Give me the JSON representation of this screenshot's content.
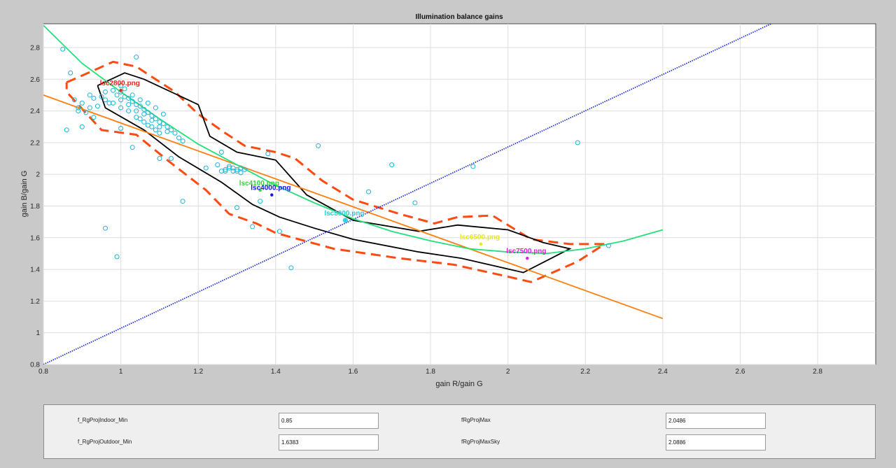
{
  "chart_data": {
    "type": "scatter",
    "title": "Illumination balance gains",
    "xlabel": "gain R/gain G",
    "ylabel": "gain B/gain G",
    "xlim": [
      0.8,
      2.95
    ],
    "ylim": [
      0.8,
      2.95
    ],
    "xticks": [
      0.8,
      1,
      1.2,
      1.4,
      1.6,
      1.8,
      2,
      2.2,
      2.4,
      2.6,
      2.8
    ],
    "yticks": [
      0.8,
      1,
      1.2,
      1.4,
      1.6,
      1.8,
      2,
      2.2,
      2.4,
      2.6,
      2.8
    ],
    "grid": true,
    "colors": {
      "samples": "#19b5d8",
      "green_curve": "#22e07a",
      "orange_line": "#ff7f0e",
      "blue_diag": "#1f2fd0",
      "black_outline": "#000000",
      "red_dashed": "#ff4a10"
    },
    "samples": [
      [
        0.85,
        2.79
      ],
      [
        0.87,
        2.64
      ],
      [
        0.86,
        2.28
      ],
      [
        0.88,
        2.47
      ],
      [
        0.89,
        2.4
      ],
      [
        0.9,
        2.45
      ],
      [
        0.91,
        2.39
      ],
      [
        0.92,
        2.42
      ],
      [
        0.93,
        2.36
      ],
      [
        0.94,
        2.43
      ],
      [
        0.95,
        2.49
      ],
      [
        0.96,
        2.47
      ],
      [
        0.97,
        2.45
      ],
      [
        0.93,
        2.48
      ],
      [
        0.9,
        2.3
      ],
      [
        0.89,
        2.42
      ],
      [
        0.92,
        2.5
      ],
      [
        0.96,
        2.52
      ],
      [
        0.98,
        2.53
      ],
      [
        0.99,
        2.5
      ],
      [
        1.0,
        2.52
      ],
      [
        1.01,
        2.49
      ],
      [
        1.02,
        2.48
      ],
      [
        1.03,
        2.46
      ],
      [
        1.04,
        2.44
      ],
      [
        1.05,
        2.43
      ],
      [
        1.06,
        2.41
      ],
      [
        1.07,
        2.39
      ],
      [
        1.08,
        2.37
      ],
      [
        1.09,
        2.35
      ],
      [
        1.1,
        2.33
      ],
      [
        1.11,
        2.32
      ],
      [
        1.12,
        2.3
      ],
      [
        1.13,
        2.28
      ],
      [
        1.14,
        2.26
      ],
      [
        1.15,
        2.23
      ],
      [
        1.0,
        2.47
      ],
      [
        1.02,
        2.44
      ],
      [
        1.04,
        2.4
      ],
      [
        1.06,
        2.38
      ],
      [
        1.08,
        2.34
      ],
      [
        1.1,
        2.3
      ],
      [
        1.12,
        2.27
      ],
      [
        1.0,
        2.56
      ],
      [
        1.01,
        2.54
      ],
      [
        1.03,
        2.5
      ],
      [
        1.05,
        2.47
      ],
      [
        1.07,
        2.45
      ],
      [
        1.09,
        2.42
      ],
      [
        1.11,
        2.38
      ],
      [
        0.98,
        2.45
      ],
      [
        1.0,
        2.42
      ],
      [
        1.02,
        2.4
      ],
      [
        1.04,
        2.36
      ],
      [
        1.06,
        2.33
      ],
      [
        1.08,
        2.3
      ],
      [
        1.1,
        2.26
      ],
      [
        1.05,
        2.35
      ],
      [
        1.07,
        2.31
      ],
      [
        1.09,
        2.28
      ],
      [
        1.04,
        2.74
      ],
      [
        0.96,
        1.66
      ],
      [
        0.99,
        1.48
      ],
      [
        1.03,
        2.17
      ],
      [
        1.0,
        2.29
      ],
      [
        1.1,
        2.1
      ],
      [
        1.16,
        2.21
      ],
      [
        1.16,
        1.83
      ],
      [
        1.13,
        2.1
      ],
      [
        1.22,
        2.04
      ],
      [
        1.25,
        2.06
      ],
      [
        1.26,
        2.14
      ],
      [
        1.27,
        2.03
      ],
      [
        1.28,
        2.04
      ],
      [
        1.29,
        2.02
      ],
      [
        1.3,
        2.03
      ],
      [
        1.31,
        2.01
      ],
      [
        1.27,
        2.02
      ],
      [
        1.28,
        2.05
      ],
      [
        1.29,
        2.04
      ],
      [
        1.3,
        2.02
      ],
      [
        1.26,
        2.02
      ],
      [
        1.31,
        2.04
      ],
      [
        1.32,
        2.03
      ],
      [
        1.3,
        1.79
      ],
      [
        1.34,
        1.67
      ],
      [
        1.36,
        1.83
      ],
      [
        1.38,
        2.13
      ],
      [
        1.41,
        1.64
      ],
      [
        1.44,
        1.41
      ],
      [
        1.51,
        2.18
      ],
      [
        1.58,
        1.71
      ],
      [
        1.64,
        1.89
      ],
      [
        1.7,
        2.06
      ],
      [
        1.76,
        1.82
      ],
      [
        1.91,
        2.05
      ],
      [
        2.18,
        2.2
      ],
      [
        2.26,
        1.55
      ]
    ],
    "illuminants": [
      {
        "label": "lsc2800.png",
        "x": 1.0,
        "y": 2.53,
        "color": "#ff1a1a"
      },
      {
        "label": "lsc4100.png",
        "x": 1.36,
        "y": 1.9,
        "color": "#2fd82f"
      },
      {
        "label": "lsc4000.png",
        "x": 1.39,
        "y": 1.87,
        "color": "#1414e6"
      },
      {
        "label": "lsc5000.png",
        "x": 1.58,
        "y": 1.71,
        "color": "#19d0e0"
      },
      {
        "label": "lsc6500.png",
        "x": 1.93,
        "y": 1.56,
        "color": "#e6e619"
      },
      {
        "label": "lsc7500.png",
        "x": 2.05,
        "y": 1.47,
        "color": "#e619e6"
      }
    ],
    "green_curve": [
      [
        0.8,
        2.94
      ],
      [
        0.9,
        2.7
      ],
      [
        1.0,
        2.52
      ],
      [
        1.1,
        2.35
      ],
      [
        1.2,
        2.19
      ],
      [
        1.3,
        2.06
      ],
      [
        1.4,
        1.93
      ],
      [
        1.5,
        1.82
      ],
      [
        1.6,
        1.72
      ],
      [
        1.7,
        1.64
      ],
      [
        1.8,
        1.58
      ],
      [
        1.9,
        1.53
      ],
      [
        2.0,
        1.51
      ],
      [
        2.1,
        1.5
      ],
      [
        2.2,
        1.53
      ],
      [
        2.3,
        1.58
      ],
      [
        2.4,
        1.65
      ]
    ],
    "orange_line": [
      [
        0.8,
        2.5
      ],
      [
        2.4,
        1.09
      ]
    ],
    "blue_diag": [
      [
        0.8,
        0.8
      ],
      [
        2.68,
        2.95
      ]
    ],
    "black_outline": [
      [
        0.94,
        2.56
      ],
      [
        1.01,
        2.64
      ],
      [
        1.06,
        2.6
      ],
      [
        1.2,
        2.44
      ],
      [
        1.23,
        2.24
      ],
      [
        1.3,
        2.14
      ],
      [
        1.4,
        2.09
      ],
      [
        1.48,
        1.87
      ],
      [
        1.6,
        1.71
      ],
      [
        1.77,
        1.64
      ],
      [
        1.87,
        1.68
      ],
      [
        2.0,
        1.65
      ],
      [
        2.09,
        1.57
      ],
      [
        2.16,
        1.53
      ],
      [
        2.04,
        1.38
      ],
      [
        1.88,
        1.47
      ],
      [
        1.77,
        1.51
      ],
      [
        1.6,
        1.59
      ],
      [
        1.5,
        1.66
      ],
      [
        1.41,
        1.73
      ],
      [
        1.34,
        1.81
      ],
      [
        1.26,
        1.95
      ],
      [
        1.15,
        2.11
      ],
      [
        1.06,
        2.28
      ],
      [
        0.96,
        2.42
      ],
      [
        0.94,
        2.56
      ]
    ],
    "red_dashed": [
      [
        0.86,
        2.58
      ],
      [
        0.98,
        2.71
      ],
      [
        1.04,
        2.68
      ],
      [
        1.14,
        2.52
      ],
      [
        1.2,
        2.38
      ],
      [
        1.27,
        2.26
      ],
      [
        1.32,
        2.18
      ],
      [
        1.4,
        2.14
      ],
      [
        1.45,
        2.1
      ],
      [
        1.52,
        1.96
      ],
      [
        1.6,
        1.84
      ],
      [
        1.72,
        1.75
      ],
      [
        1.81,
        1.69
      ],
      [
        1.87,
        1.73
      ],
      [
        1.96,
        1.74
      ],
      [
        2.06,
        1.59
      ],
      [
        2.16,
        1.56
      ],
      [
        2.25,
        1.56
      ],
      [
        2.18,
        1.45
      ],
      [
        2.06,
        1.32
      ],
      [
        1.99,
        1.36
      ],
      [
        1.86,
        1.43
      ],
      [
        1.72,
        1.47
      ],
      [
        1.55,
        1.53
      ],
      [
        1.4,
        1.63
      ],
      [
        1.35,
        1.69
      ],
      [
        1.28,
        1.75
      ],
      [
        1.22,
        1.9
      ],
      [
        1.12,
        2.09
      ],
      [
        1.04,
        2.25
      ],
      [
        0.95,
        2.28
      ],
      [
        0.86,
        2.52
      ],
      [
        0.86,
        2.58
      ]
    ]
  },
  "params": {
    "rows": [
      {
        "label1": "f_RgProjIndoor_Min",
        "value1": "0.85",
        "label2": "fRgProjMax",
        "value2": "2.0486"
      },
      {
        "label1": "f_RgProjOutdoor_Min",
        "value1": "1.6383",
        "label2": "fRgProjMaxSky",
        "value2": "2.0886"
      }
    ]
  }
}
